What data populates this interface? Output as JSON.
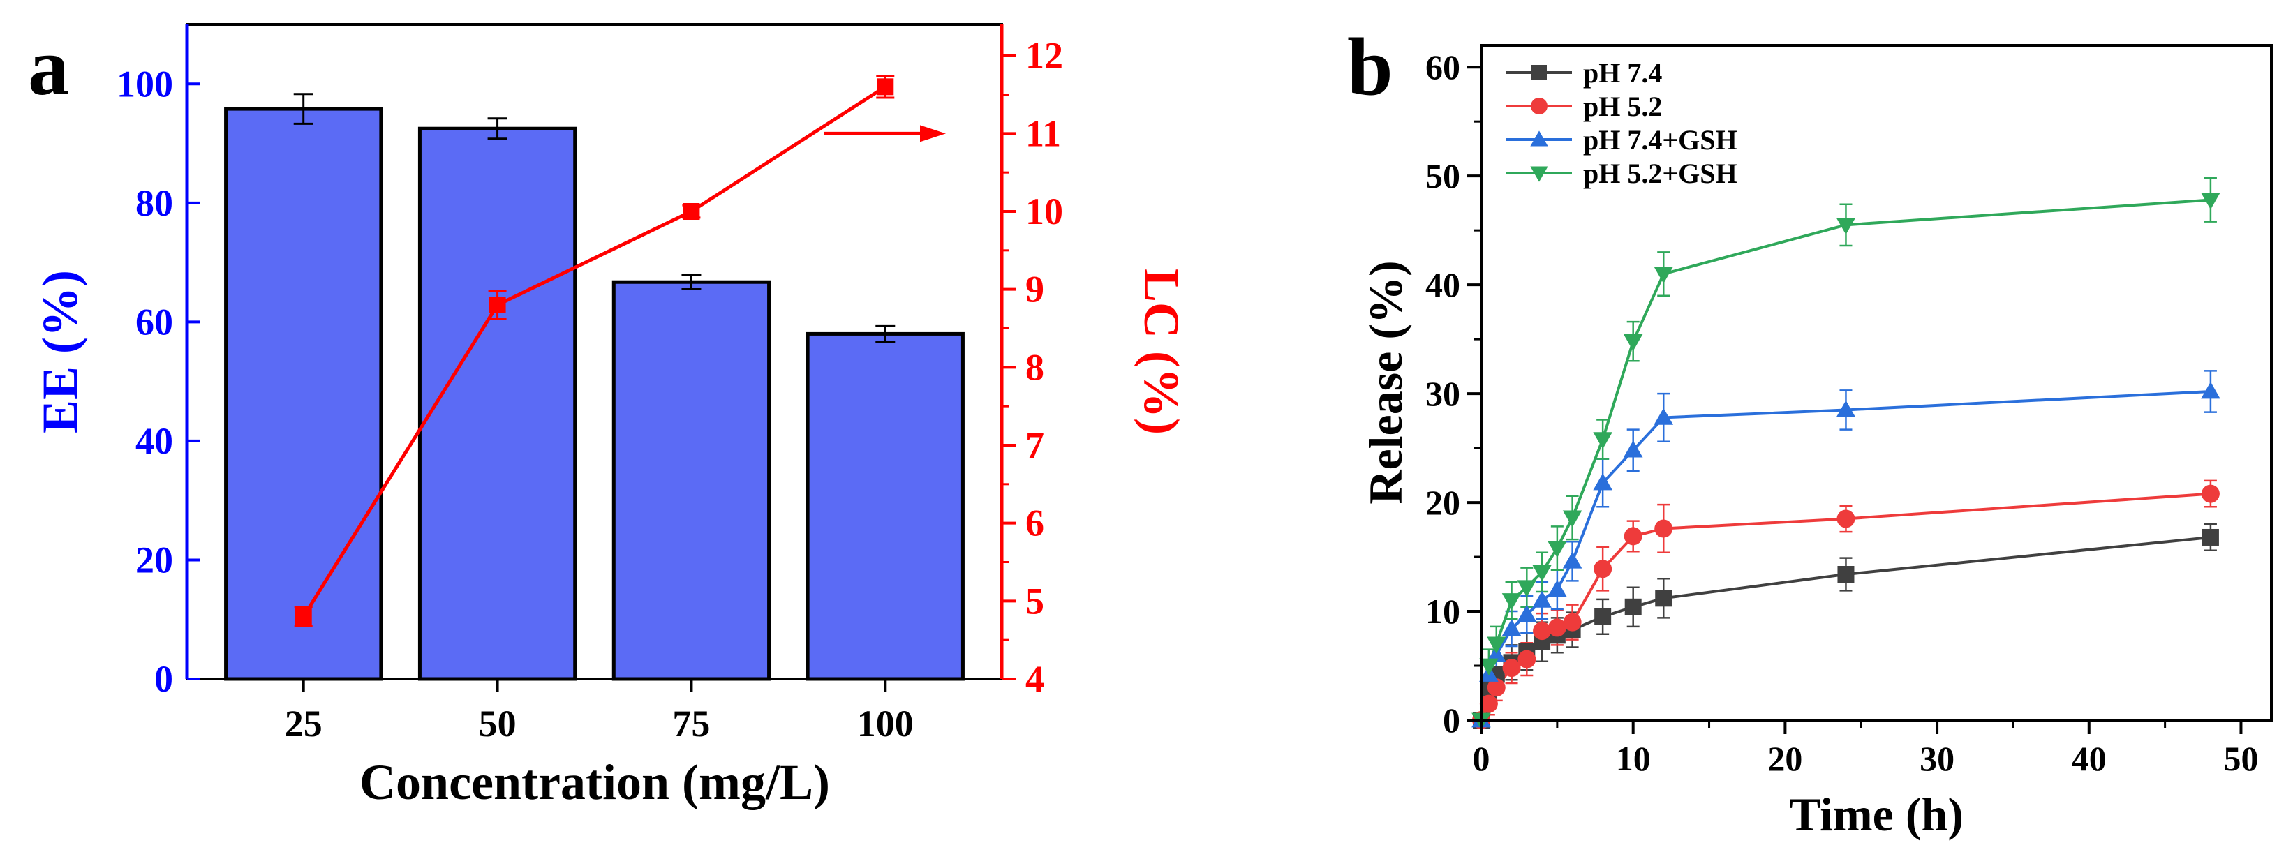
{
  "chart_data": [
    {
      "panel": "a",
      "type": "bar",
      "categories": [
        "25",
        "50",
        "75",
        "100"
      ],
      "xlabel": "Concentration (mg/L)",
      "series": [
        {
          "name": "EE (%)",
          "type": "bar",
          "axis": "left",
          "color": "#5b6bf5",
          "values": [
            95.8,
            92.5,
            66.7,
            58.0
          ],
          "errors": [
            2.5,
            1.7,
            1.2,
            1.3
          ]
        },
        {
          "name": "LC (%)",
          "type": "line",
          "axis": "right",
          "color": "#ff0000",
          "values": [
            4.8,
            8.8,
            10.0,
            11.6
          ],
          "errors": [
            0.12,
            0.18,
            0.08,
            0.14
          ]
        }
      ],
      "left_axis": {
        "label": "EE (%)",
        "color": "#0000ff",
        "range": [
          0,
          110
        ],
        "ticks": [
          0,
          20,
          40,
          60,
          80,
          100
        ],
        "tick_labels": [
          "0",
          "20",
          "40",
          "60",
          "80",
          "100"
        ]
      },
      "right_axis": {
        "label": "LC (%)",
        "color": "#ff0000",
        "range": [
          4,
          12.4
        ],
        "ticks": [
          4,
          5,
          6,
          7,
          8,
          9,
          10,
          11,
          12
        ],
        "tick_labels": [
          "4",
          "5",
          "6",
          "7",
          "8",
          "9",
          "10",
          "11",
          "12"
        ]
      },
      "annotations": [
        {
          "type": "arrow",
          "points_to": "right",
          "near_series": "LC (%)"
        }
      ]
    },
    {
      "panel": "b",
      "type": "line",
      "xlabel": "Time (h)",
      "ylabel": "Release (%)",
      "xlim": [
        0,
        52
      ],
      "ylim": [
        0,
        62
      ],
      "xticks": [
        0,
        10,
        20,
        30,
        40,
        50
      ],
      "xtick_labels": [
        "0",
        "10",
        "20",
        "30",
        "40",
        "50"
      ],
      "yticks": [
        0,
        10,
        20,
        30,
        40,
        50,
        60
      ],
      "ytick_labels": [
        "0",
        "10",
        "20",
        "30",
        "40",
        "50",
        "60"
      ],
      "x": [
        0,
        0.5,
        1,
        2,
        3,
        4,
        5,
        6,
        8,
        10,
        12,
        24,
        48
      ],
      "legend_position": "top-left",
      "series": [
        {
          "name": "pH 7.4",
          "color": "#404040",
          "marker": "square",
          "values": [
            0,
            2.8,
            4.2,
            5.3,
            6.3,
            7.2,
            7.8,
            8.3,
            9.5,
            10.4,
            11.2,
            13.4,
            16.8
          ],
          "errors": [
            0.5,
            1.2,
            1.5,
            1.6,
            1.7,
            1.8,
            1.6,
            1.6,
            1.6,
            1.8,
            1.8,
            1.5,
            1.2
          ]
        },
        {
          "name": "pH 5.2",
          "color": "#ee3b3b",
          "marker": "circle",
          "values": [
            0,
            1.5,
            3.0,
            4.8,
            5.6,
            8.2,
            8.5,
            9.0,
            13.9,
            16.9,
            17.6,
            18.5,
            20.8
          ],
          "errors": [
            0.5,
            1.0,
            1.2,
            1.4,
            1.5,
            1.6,
            1.6,
            1.6,
            2.0,
            1.4,
            2.2,
            1.2,
            1.2
          ]
        },
        {
          "name": "pH 7.4+GSH",
          "color": "#2a6fdb",
          "marker": "triangle-up",
          "values": [
            0,
            4.2,
            6.0,
            8.4,
            9.7,
            11.0,
            12.0,
            14.6,
            21.8,
            24.8,
            27.8,
            28.5,
            30.2
          ],
          "errors": [
            0.5,
            1.3,
            1.5,
            1.6,
            1.7,
            1.7,
            1.8,
            1.8,
            2.2,
            1.9,
            2.2,
            1.8,
            1.9
          ]
        },
        {
          "name": "pH 5.2+GSH",
          "color": "#2fa85a",
          "marker": "triangle-down",
          "values": [
            0,
            5.0,
            7.0,
            11.0,
            12.2,
            13.6,
            15.8,
            18.6,
            25.8,
            34.8,
            41.0,
            45.5,
            47.8
          ],
          "errors": [
            0.6,
            1.5,
            1.6,
            1.7,
            1.8,
            1.8,
            2.0,
            2.0,
            1.8,
            1.8,
            2.0,
            1.9,
            2.0
          ]
        }
      ]
    }
  ]
}
